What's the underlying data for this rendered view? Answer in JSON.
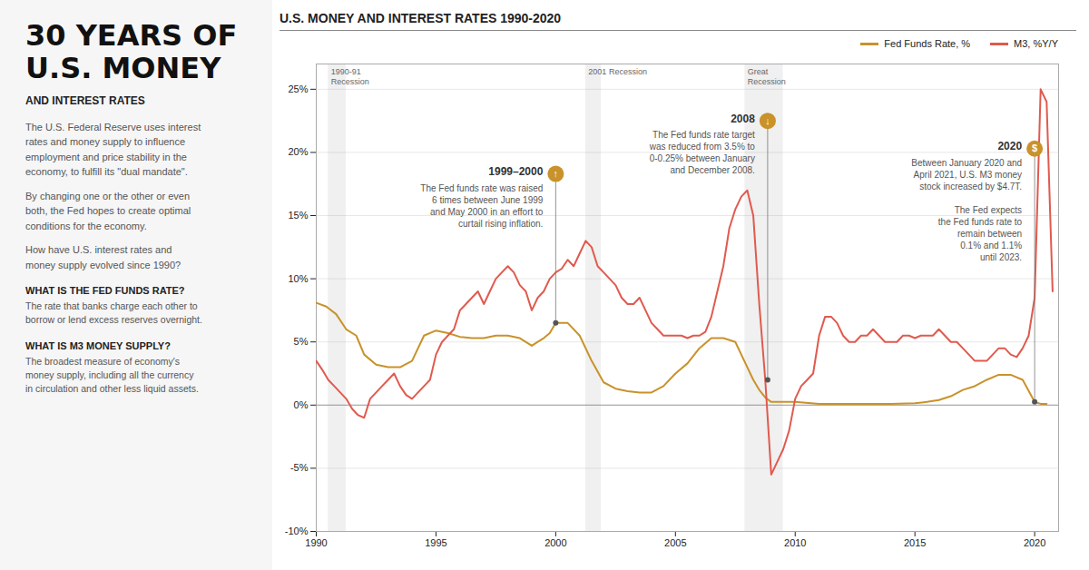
{
  "chart_data": {
    "type": "line",
    "title": "U.S. MONEY AND INTEREST RATES 1990-2020",
    "headline": "30 YEARS OF\nU.S. MONEY",
    "subtitle": "AND INTEREST RATES",
    "paragraphs": [
      "The U.S. Federal Reserve uses interest\nrates and money supply to influence\nemployment and price stability in the\neconomy, to fulfill its \"dual mandate\".",
      "By changing one or the other or even\nboth, the Fed hopes to create optimal\nconditions for the economy.",
      "How have U.S. interest rates and\nmoney supply evolved since 1990?"
    ],
    "definitions": [
      {
        "title": "WHAT IS THE FED FUNDS RATE?",
        "text": "The rate that banks charge each other to\nborrow or lend excess reserves overnight."
      },
      {
        "title": "WHAT IS M3 MONEY SUPPLY?",
        "text": "The broadest measure of economy's\nmoney supply, including all the currency\nin circulation and other less liquid assets."
      }
    ],
    "xlim": [
      1990,
      2021
    ],
    "xticks": [
      1990,
      1995,
      2000,
      2005,
      2010,
      2015,
      2020
    ],
    "ylim": [
      -10,
      27
    ],
    "yticks": [
      {
        "value": -10,
        "label": "-10%"
      },
      {
        "value": -5,
        "label": "-5%"
      },
      {
        "value": 0,
        "label": "0%"
      },
      {
        "value": 5,
        "label": "5%"
      },
      {
        "value": 10,
        "label": "10%"
      },
      {
        "value": 15,
        "label": "15%"
      },
      {
        "value": 20,
        "label": "20%"
      },
      {
        "value": 25,
        "label": "25%"
      }
    ],
    "grid": true,
    "legend": "upper right",
    "series": [
      {
        "name": "Fed Funds Rate, %",
        "color": "#c9922a",
        "x": [
          1990.0,
          1990.42,
          1990.83,
          1991.25,
          1991.67,
          1992.0,
          1992.5,
          1993.0,
          1993.5,
          1994.0,
          1994.5,
          1995.0,
          1995.5,
          1996.0,
          1996.5,
          1997.0,
          1997.5,
          1998.0,
          1998.5,
          1999.0,
          1999.25,
          1999.5,
          1999.75,
          2000.0,
          2000.25,
          2000.5,
          2001.0,
          2001.5,
          2002.0,
          2002.5,
          2003.0,
          2003.5,
          2004.0,
          2004.5,
          2005.0,
          2005.5,
          2006.0,
          2006.5,
          2007.0,
          2007.5,
          2008.0,
          2008.25,
          2008.5,
          2008.75,
          2009.0,
          2009.5,
          2010.0,
          2011.0,
          2012.0,
          2013.0,
          2014.0,
          2015.0,
          2015.5,
          2016.0,
          2016.5,
          2017.0,
          2017.5,
          2018.0,
          2018.5,
          2019.0,
          2019.5,
          2020.0,
          2020.25,
          2020.5
        ],
        "values": [
          8.1,
          7.8,
          7.2,
          6.0,
          5.5,
          4.0,
          3.2,
          3.0,
          3.0,
          3.5,
          5.5,
          5.9,
          5.7,
          5.4,
          5.3,
          5.3,
          5.5,
          5.5,
          5.3,
          4.7,
          5.0,
          5.3,
          5.7,
          6.5,
          6.5,
          6.5,
          5.5,
          3.5,
          1.8,
          1.3,
          1.1,
          1.0,
          1.0,
          1.5,
          2.5,
          3.3,
          4.5,
          5.3,
          5.3,
          5.0,
          3.0,
          2.0,
          1.2,
          0.6,
          0.25,
          0.25,
          0.25,
          0.1,
          0.1,
          0.1,
          0.1,
          0.15,
          0.25,
          0.4,
          0.7,
          1.2,
          1.5,
          2.0,
          2.4,
          2.4,
          2.0,
          0.25,
          0.1,
          0.1
        ]
      },
      {
        "name": "M3, %Y/Y",
        "color": "#e05a4e",
        "x": [
          1990.0,
          1990.25,
          1990.5,
          1990.75,
          1991.0,
          1991.25,
          1991.5,
          1991.75,
          1992.0,
          1992.25,
          1992.5,
          1992.75,
          1993.0,
          1993.25,
          1993.5,
          1993.75,
          1994.0,
          1994.25,
          1994.5,
          1994.75,
          1995.0,
          1995.25,
          1995.5,
          1995.75,
          1996.0,
          1996.25,
          1996.5,
          1996.75,
          1997.0,
          1997.25,
          1997.5,
          1997.75,
          1998.0,
          1998.25,
          1998.5,
          1998.75,
          1999.0,
          1999.25,
          1999.5,
          1999.75,
          2000.0,
          2000.25,
          2000.5,
          2000.75,
          2001.0,
          2001.25,
          2001.5,
          2001.75,
          2002.0,
          2002.25,
          2002.5,
          2002.75,
          2003.0,
          2003.25,
          2003.5,
          2003.75,
          2004.0,
          2004.25,
          2004.5,
          2004.75,
          2005.0,
          2005.25,
          2005.5,
          2005.75,
          2006.0,
          2006.25,
          2006.5,
          2006.75,
          2007.0,
          2007.25,
          2007.5,
          2007.75,
          2008.0,
          2008.25,
          2008.5,
          2008.75,
          2009.0,
          2009.25,
          2009.5,
          2009.75,
          2010.0,
          2010.25,
          2010.5,
          2010.75,
          2011.0,
          2011.25,
          2011.5,
          2011.75,
          2012.0,
          2012.25,
          2012.5,
          2012.75,
          2013.0,
          2013.25,
          2013.5,
          2013.75,
          2014.0,
          2014.25,
          2014.5,
          2014.75,
          2015.0,
          2015.25,
          2015.5,
          2015.75,
          2016.0,
          2016.25,
          2016.5,
          2016.75,
          2017.0,
          2017.25,
          2017.5,
          2017.75,
          2018.0,
          2018.25,
          2018.5,
          2018.75,
          2019.0,
          2019.25,
          2019.5,
          2019.75,
          2020.0,
          2020.25,
          2020.5,
          2020.75
        ],
        "values": [
          3.5,
          2.8,
          2.0,
          1.5,
          1.0,
          0.5,
          -0.3,
          -0.8,
          -1.0,
          0.5,
          1.0,
          1.5,
          2.0,
          2.5,
          1.5,
          0.8,
          0.5,
          1.0,
          1.5,
          2.0,
          4.0,
          5.0,
          5.5,
          6.0,
          7.5,
          8.0,
          8.5,
          9.0,
          8.0,
          9.0,
          10.0,
          10.5,
          11.0,
          10.5,
          9.5,
          9.0,
          7.5,
          8.5,
          9.0,
          10.0,
          10.5,
          10.8,
          11.5,
          11.0,
          12.0,
          13.0,
          12.5,
          11.0,
          10.5,
          10.0,
          9.5,
          8.5,
          8.0,
          8.0,
          8.5,
          7.5,
          6.5,
          6.0,
          5.5,
          5.5,
          5.5,
          5.5,
          5.3,
          5.5,
          5.5,
          5.8,
          7.0,
          9.0,
          11.0,
          14.0,
          15.5,
          16.5,
          17.0,
          15.0,
          8.0,
          2.0,
          -5.5,
          -4.5,
          -3.5,
          -2.0,
          0.5,
          1.5,
          2.0,
          2.5,
          5.5,
          7.0,
          7.0,
          6.5,
          5.5,
          5.0,
          5.0,
          5.5,
          5.5,
          6.0,
          5.5,
          5.0,
          5.0,
          5.0,
          5.5,
          5.5,
          5.3,
          5.5,
          5.5,
          5.5,
          6.0,
          5.5,
          5.0,
          5.0,
          4.5,
          4.0,
          3.5,
          3.5,
          3.5,
          4.0,
          4.5,
          4.5,
          4.0,
          3.8,
          4.5,
          5.5,
          8.5,
          25.0,
          24.0,
          9.0
        ]
      }
    ],
    "recessions": [
      {
        "start": 1990.5,
        "end": 1991.25,
        "label": "1990-91\nRecession"
      },
      {
        "start": 2001.25,
        "end": 2001.9,
        "label": "2001 Recession"
      },
      {
        "start": 2007.9,
        "end": 2009.5,
        "label": "Great\nRecession"
      }
    ],
    "annotations": [
      {
        "x": 2000.0,
        "y": 6.5,
        "icon_y": 18.3,
        "icon": "↑",
        "title": "1999–2000",
        "texts": [
          "The Fed funds rate was raised\n6 times between June 1999\nand May 2000 in an effort to\ncurtail rising inflation."
        ]
      },
      {
        "x": 2008.85,
        "y": 2.0,
        "icon_y": 22.5,
        "icon": "↓",
        "title": "2008",
        "texts": [
          "The Fed funds rate target\nwas reduced from 3.5% to\n0-0.25% between January\nand December 2008."
        ]
      },
      {
        "x": 2020.0,
        "y": 0.25,
        "icon_y": 20.3,
        "icon": "$",
        "title": "2020",
        "texts": [
          "Between January 2020 and\nApril 2021, U.S. M3 money\nstock increased by $4.7T.",
          "The Fed expects\nthe Fed funds rate to\nremain between\n0.1% and 1.1%\nuntil 2023."
        ]
      }
    ]
  }
}
